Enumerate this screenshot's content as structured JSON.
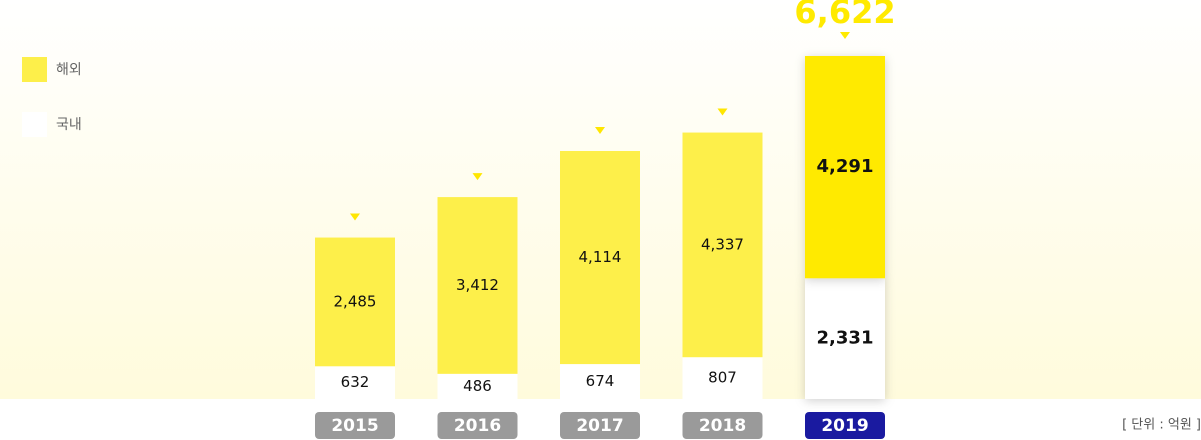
{
  "chart_data": {
    "type": "stacked_bar",
    "categories": [
      "2015",
      "2016",
      "2017",
      "2018",
      "2019"
    ],
    "series": [
      {
        "name": "국내",
        "color": "#ffffff",
        "values": [
          632,
          486,
          674,
          807,
          2331
        ],
        "value_labels": [
          "632",
          "486",
          "674",
          "807",
          "2,331"
        ]
      },
      {
        "name": "해외",
        "color": "#fdef4a",
        "values": [
          2485,
          3412,
          4114,
          4337,
          4291
        ],
        "value_labels": [
          "2,485",
          "3,412",
          "4,114",
          "4,337",
          "4,291"
        ]
      }
    ],
    "highlight_category": "2019",
    "highlight_color": "#ffea00",
    "highlight_label_color": "#1a1aa0",
    "label_color": "#9a9a9a",
    "annotation": {
      "value": 6622,
      "label": "6,622"
    },
    "unit_note": "[ 단위 : 억원 ]",
    "ylim": [
      0,
      6622
    ],
    "legend": "top-left"
  }
}
